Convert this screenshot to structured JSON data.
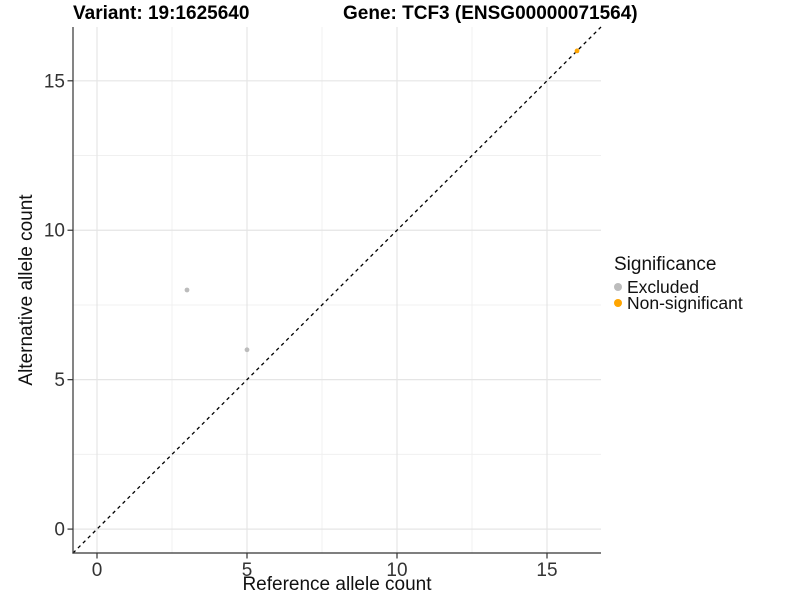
{
  "chart_data": {
    "type": "scatter",
    "title_variant": "Variant: 19:1625640",
    "title_gene": "Gene: TCF3 (ENSG00000071564)",
    "xlabel": "Reference allele count",
    "ylabel": "Alternative allele count",
    "xlim": [
      -0.8,
      16.8
    ],
    "ylim": [
      -0.8,
      16.8
    ],
    "x_ticks": [
      0,
      5,
      10,
      15
    ],
    "y_ticks": [
      0,
      5,
      10,
      15
    ],
    "x_minor_ticks": [
      2.5,
      7.5,
      12.5
    ],
    "y_minor_ticks": [
      2.5,
      7.5,
      12.5
    ],
    "grid": "on",
    "legend_position": "right",
    "legend": {
      "title": "Significance",
      "entries": [
        {
          "label": "Excluded",
          "color": "#bcbcbc"
        },
        {
          "label": "Non-significant",
          "color": "#FFA500"
        }
      ]
    },
    "series": [
      {
        "name": "Excluded",
        "color": "#bcbcbc",
        "points": [
          [
            3,
            8
          ],
          [
            5,
            6
          ]
        ]
      },
      {
        "name": "Non-significant",
        "color": "#FFA500",
        "points": [
          [
            16,
            16
          ]
        ]
      }
    ],
    "identity_line": {
      "style": "dashed",
      "color": "#000000",
      "x1": -0.8,
      "y1": -0.8,
      "x2": 16.8,
      "y2": 16.8
    }
  },
  "colors": {
    "background": "#ffffff",
    "grid_major": "#e5e5e5",
    "grid_minor": "#f0f0f0",
    "axis_line": "#333333",
    "tick_label": "#333333"
  }
}
